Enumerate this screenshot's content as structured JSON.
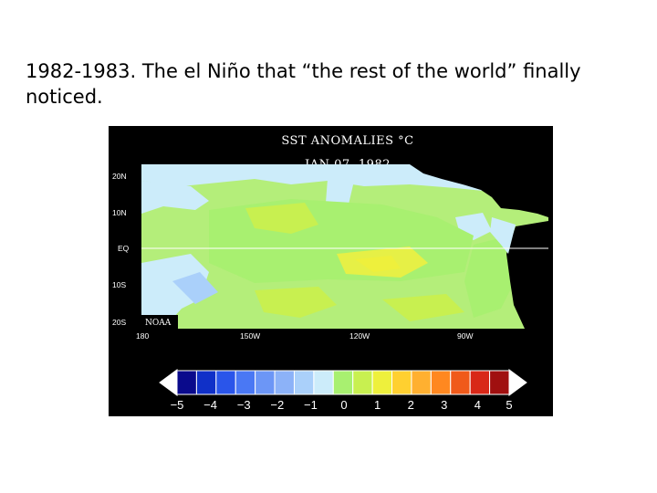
{
  "slide": {
    "caption": "1982-1983.  The el Niño that “the rest of the world” finally noticed."
  },
  "map": {
    "title": "SST ANOMALIES °C",
    "date": "JAN 07, 1982",
    "credit": "NOAA",
    "lat_labels": [
      "20N",
      "10N",
      "EQ",
      "10S",
      "20S"
    ],
    "lon_labels": [
      "180",
      "150W",
      "120W",
      "90W"
    ]
  },
  "colorbar": {
    "tick_labels": [
      "−5",
      "−4",
      "−3",
      "−2",
      "−1",
      "0",
      "1",
      "2",
      "3",
      "4",
      "5"
    ],
    "colors": [
      "#0a0a8c",
      "#1030c8",
      "#2a55ea",
      "#4a78f4",
      "#6c96f6",
      "#8cb2f8",
      "#aad0fa",
      "#ccecfa",
      "#a8f070",
      "#c8f050",
      "#eef03c",
      "#ffd030",
      "#ffb030",
      "#ff8820",
      "#f05a1a",
      "#d82818",
      "#a01010"
    ]
  }
}
